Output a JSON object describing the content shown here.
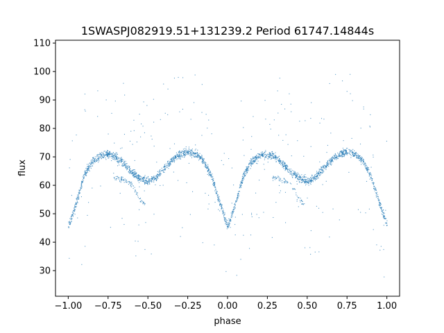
{
  "chart_data": {
    "type": "scatter",
    "title": "1SWASPJ082919.51+131239.2 Period 61747.14844s",
    "xlabel": "phase",
    "ylabel": "flux",
    "xlim": [
      -1.08,
      1.08
    ],
    "ylim": [
      21,
      111
    ],
    "xticks": [
      -1.0,
      -0.75,
      -0.5,
      -0.25,
      0.0,
      0.25,
      0.5,
      0.75,
      1.0
    ],
    "xtick_labels": [
      "−1.00",
      "−0.75",
      "−0.50",
      "−0.25",
      "0.00",
      "0.25",
      "0.50",
      "0.75",
      "1.00"
    ],
    "yticks": [
      30,
      40,
      50,
      60,
      70,
      80,
      90,
      100,
      110
    ],
    "ytick_labels": [
      "30",
      "40",
      "50",
      "60",
      "70",
      "80",
      "90",
      "100",
      "110"
    ],
    "grid": false,
    "point_color": "#1f77b4",
    "series": [
      {
        "x": [
          -1.0,
          -0.95,
          -0.9,
          -0.85,
          -0.8,
          -0.75,
          -0.7,
          -0.65,
          -0.6,
          -0.55,
          -0.5,
          -0.45,
          -0.4,
          -0.35,
          -0.3,
          -0.25,
          -0.2,
          -0.15,
          -0.1,
          -0.05,
          0.0,
          0.05,
          0.1,
          0.15,
          0.2,
          0.25,
          0.3,
          0.35,
          0.4,
          0.45,
          0.5,
          0.55,
          0.6,
          0.65,
          0.7,
          0.75,
          0.8,
          0.85,
          0.9,
          0.95,
          1.0
        ],
        "y": [
          46,
          54,
          64,
          68.5,
          70.5,
          71,
          70,
          67.5,
          64.5,
          62.5,
          61.5,
          63,
          66,
          69,
          71,
          72,
          71,
          68.5,
          63,
          54,
          45.5,
          54,
          64,
          68.5,
          70.5,
          71,
          70,
          67.5,
          64.5,
          62.5,
          61.5,
          63,
          66,
          69,
          71,
          72,
          71,
          68.5,
          63,
          54,
          46
        ]
      }
    ],
    "secondary_branch": {
      "x": [
        -0.72,
        -0.68,
        -0.64,
        -0.6,
        -0.55,
        -0.52,
        0.28,
        0.32,
        0.36,
        0.4,
        0.45,
        0.48
      ],
      "y": [
        63,
        62.5,
        61.5,
        60.5,
        55,
        53.5,
        63,
        62.5,
        61.5,
        60.5,
        55,
        53.5
      ]
    }
  }
}
